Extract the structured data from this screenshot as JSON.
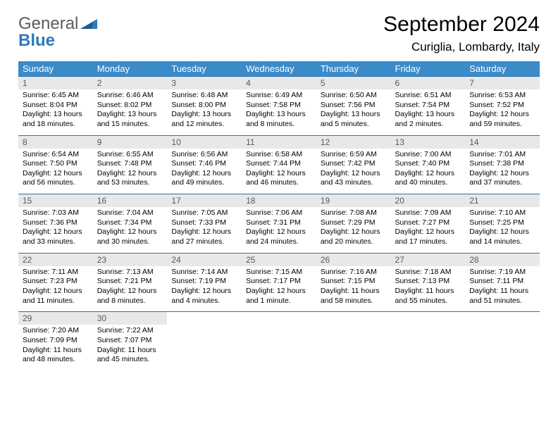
{
  "logo": {
    "text1": "General",
    "text2": "Blue"
  },
  "title": "September 2024",
  "location": "Curiglia, Lombardy, Italy",
  "colors": {
    "header_bg": "#3b8bc9",
    "header_text": "#ffffff",
    "daynum_bg": "#e8e8e8",
    "daynum_text": "#5a5a5a",
    "row_border": "#2f6fa8",
    "logo_gray": "#5b5b5b",
    "logo_blue": "#2f7bbf"
  },
  "weekdays": [
    "Sunday",
    "Monday",
    "Tuesday",
    "Wednesday",
    "Thursday",
    "Friday",
    "Saturday"
  ],
  "weeks": [
    [
      {
        "n": "1",
        "sr": "6:45 AM",
        "ss": "8:04 PM",
        "dl": "13 hours and 18 minutes."
      },
      {
        "n": "2",
        "sr": "6:46 AM",
        "ss": "8:02 PM",
        "dl": "13 hours and 15 minutes."
      },
      {
        "n": "3",
        "sr": "6:48 AM",
        "ss": "8:00 PM",
        "dl": "13 hours and 12 minutes."
      },
      {
        "n": "4",
        "sr": "6:49 AM",
        "ss": "7:58 PM",
        "dl": "13 hours and 8 minutes."
      },
      {
        "n": "5",
        "sr": "6:50 AM",
        "ss": "7:56 PM",
        "dl": "13 hours and 5 minutes."
      },
      {
        "n": "6",
        "sr": "6:51 AM",
        "ss": "7:54 PM",
        "dl": "13 hours and 2 minutes."
      },
      {
        "n": "7",
        "sr": "6:53 AM",
        "ss": "7:52 PM",
        "dl": "12 hours and 59 minutes."
      }
    ],
    [
      {
        "n": "8",
        "sr": "6:54 AM",
        "ss": "7:50 PM",
        "dl": "12 hours and 56 minutes."
      },
      {
        "n": "9",
        "sr": "6:55 AM",
        "ss": "7:48 PM",
        "dl": "12 hours and 53 minutes."
      },
      {
        "n": "10",
        "sr": "6:56 AM",
        "ss": "7:46 PM",
        "dl": "12 hours and 49 minutes."
      },
      {
        "n": "11",
        "sr": "6:58 AM",
        "ss": "7:44 PM",
        "dl": "12 hours and 46 minutes."
      },
      {
        "n": "12",
        "sr": "6:59 AM",
        "ss": "7:42 PM",
        "dl": "12 hours and 43 minutes."
      },
      {
        "n": "13",
        "sr": "7:00 AM",
        "ss": "7:40 PM",
        "dl": "12 hours and 40 minutes."
      },
      {
        "n": "14",
        "sr": "7:01 AM",
        "ss": "7:38 PM",
        "dl": "12 hours and 37 minutes."
      }
    ],
    [
      {
        "n": "15",
        "sr": "7:03 AM",
        "ss": "7:36 PM",
        "dl": "12 hours and 33 minutes."
      },
      {
        "n": "16",
        "sr": "7:04 AM",
        "ss": "7:34 PM",
        "dl": "12 hours and 30 minutes."
      },
      {
        "n": "17",
        "sr": "7:05 AM",
        "ss": "7:33 PM",
        "dl": "12 hours and 27 minutes."
      },
      {
        "n": "18",
        "sr": "7:06 AM",
        "ss": "7:31 PM",
        "dl": "12 hours and 24 minutes."
      },
      {
        "n": "19",
        "sr": "7:08 AM",
        "ss": "7:29 PM",
        "dl": "12 hours and 20 minutes."
      },
      {
        "n": "20",
        "sr": "7:09 AM",
        "ss": "7:27 PM",
        "dl": "12 hours and 17 minutes."
      },
      {
        "n": "21",
        "sr": "7:10 AM",
        "ss": "7:25 PM",
        "dl": "12 hours and 14 minutes."
      }
    ],
    [
      {
        "n": "22",
        "sr": "7:11 AM",
        "ss": "7:23 PM",
        "dl": "12 hours and 11 minutes."
      },
      {
        "n": "23",
        "sr": "7:13 AM",
        "ss": "7:21 PM",
        "dl": "12 hours and 8 minutes."
      },
      {
        "n": "24",
        "sr": "7:14 AM",
        "ss": "7:19 PM",
        "dl": "12 hours and 4 minutes."
      },
      {
        "n": "25",
        "sr": "7:15 AM",
        "ss": "7:17 PM",
        "dl": "12 hours and 1 minute."
      },
      {
        "n": "26",
        "sr": "7:16 AM",
        "ss": "7:15 PM",
        "dl": "11 hours and 58 minutes."
      },
      {
        "n": "27",
        "sr": "7:18 AM",
        "ss": "7:13 PM",
        "dl": "11 hours and 55 minutes."
      },
      {
        "n": "28",
        "sr": "7:19 AM",
        "ss": "7:11 PM",
        "dl": "11 hours and 51 minutes."
      }
    ],
    [
      {
        "n": "29",
        "sr": "7:20 AM",
        "ss": "7:09 PM",
        "dl": "11 hours and 48 minutes."
      },
      {
        "n": "30",
        "sr": "7:22 AM",
        "ss": "7:07 PM",
        "dl": "11 hours and 45 minutes."
      },
      null,
      null,
      null,
      null,
      null
    ]
  ],
  "labels": {
    "sunrise": "Sunrise:",
    "sunset": "Sunset:",
    "daylight": "Daylight:"
  }
}
